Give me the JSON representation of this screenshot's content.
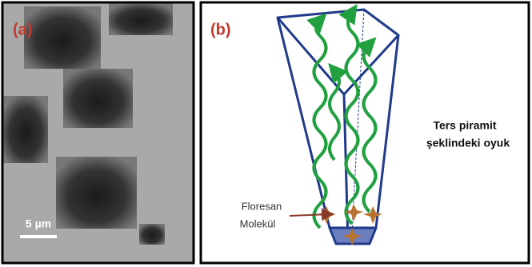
{
  "panels": [
    {
      "label": "(a)",
      "scale_bar": "5 µm"
    },
    {
      "label": "(b)",
      "caption": [
        "Ters piramit",
        "şeklindeki oyuk"
      ],
      "annotation": [
        "Floresan",
        "Molekül"
      ]
    }
  ]
}
